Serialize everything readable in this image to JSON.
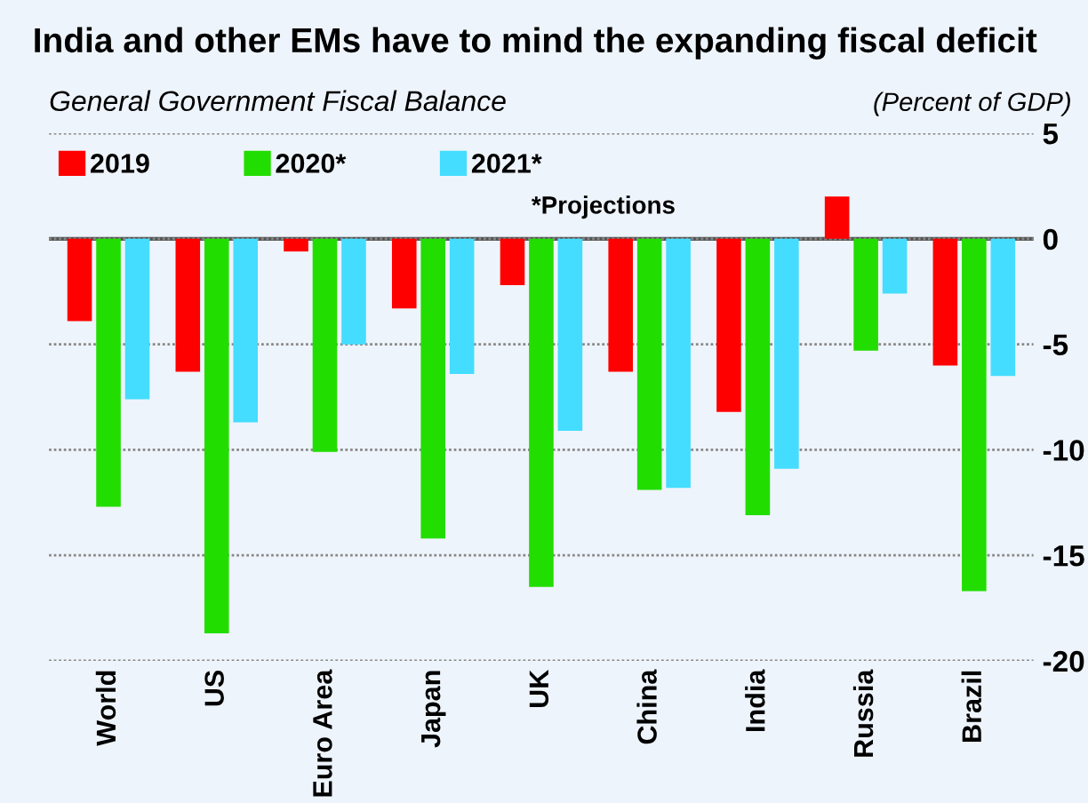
{
  "chart_data": {
    "type": "bar",
    "title": "India and other EMs have to mind the expanding fiscal deficit",
    "subtitle": "General Government Fiscal Balance",
    "ylabel": "(Percent of GDP)",
    "categories": [
      "World",
      "US",
      "Euro Area",
      "Japan",
      "UK",
      "China",
      "India",
      "Russia",
      "Brazil"
    ],
    "series": [
      {
        "name": "2019",
        "color": "#ff0000",
        "values": [
          -3.9,
          -6.3,
          -0.6,
          -3.3,
          -2.2,
          -6.3,
          -8.2,
          2.0,
          -6.0
        ]
      },
      {
        "name": "2020*",
        "color": "#22dd00",
        "values": [
          -12.7,
          -18.7,
          -10.1,
          -14.2,
          -16.5,
          -11.9,
          -13.1,
          -5.3,
          -16.7
        ]
      },
      {
        "name": "2021*",
        "color": "#44ddff",
        "values": [
          -7.6,
          -8.7,
          -5.0,
          -6.4,
          -9.1,
          -11.8,
          -10.9,
          -2.6,
          -6.5
        ]
      }
    ],
    "ylim": [
      -20,
      5
    ],
    "yticks": [
      5,
      0,
      -5,
      -10,
      -15,
      -20
    ],
    "grid": "y",
    "legend": "top left",
    "ref_lines": [
      {
        "axis": "y",
        "value": 0,
        "color": "#555555"
      }
    ],
    "annotations": [
      "*Projections"
    ]
  }
}
